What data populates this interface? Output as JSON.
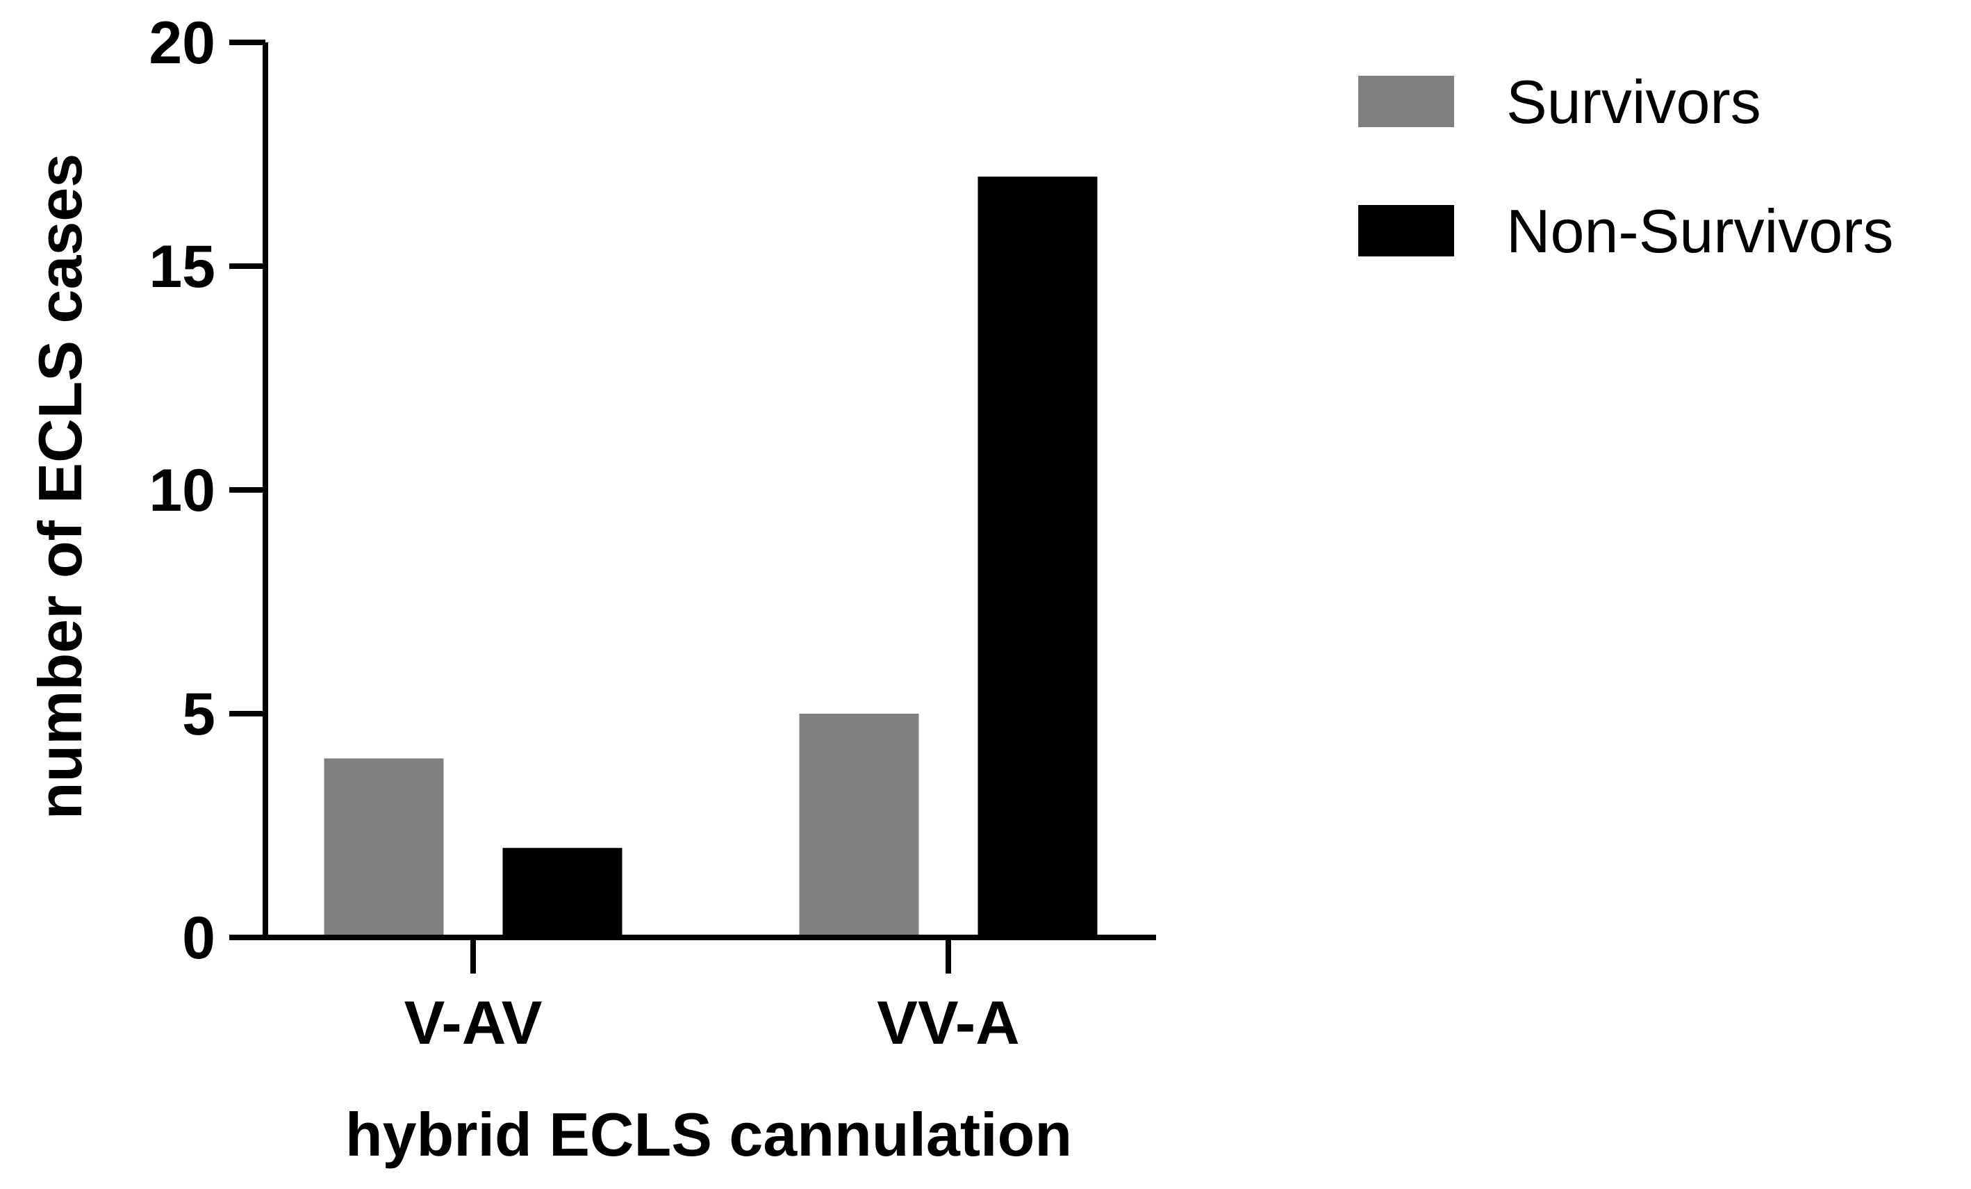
{
  "chart_data": {
    "type": "bar",
    "categories": [
      "V-AV",
      "VV-A"
    ],
    "series": [
      {
        "name": "Survivors",
        "values": [
          4,
          5
        ],
        "color": "#808080"
      },
      {
        "name": "Non-Survivors",
        "values": [
          2,
          17
        ],
        "color": "#000000"
      }
    ],
    "xlabel": "hybrid ECLS cannulation",
    "ylabel": "number of ECLS cases",
    "ylim": [
      0,
      20
    ],
    "yticks": [
      0,
      5,
      10,
      15,
      20
    ],
    "grid": false,
    "legend_position": "top-right"
  }
}
